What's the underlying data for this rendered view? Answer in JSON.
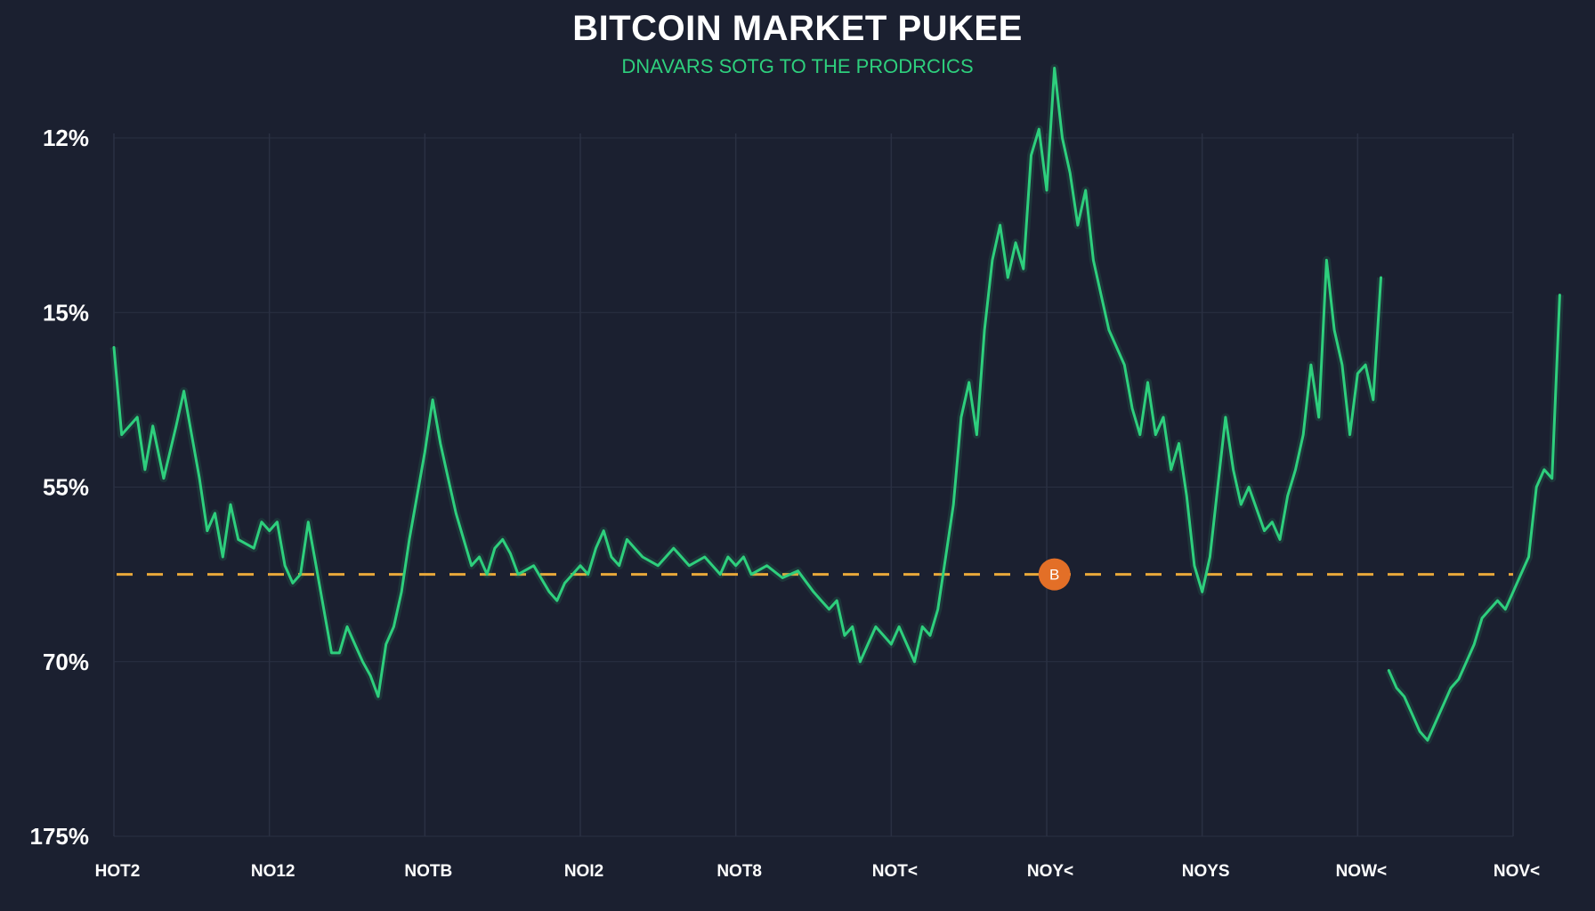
{
  "colors": {
    "background": "#1b2030",
    "series": "#2ecf7d",
    "reference": "#e9a83a",
    "marker": "#e36f27",
    "grid": "#2a3042"
  },
  "chart_data": {
    "type": "line",
    "title": "BITCOIN MARKET PUKEE",
    "subtitle": "DNAVARS SOTG TO THE PRODRCICS",
    "y_tick_labels": [
      "175%",
      "70%",
      "55%",
      "15%",
      "12%"
    ],
    "x_tick_labels": [
      "HOT2",
      "NO12",
      "NOTB",
      "NOI2",
      "NOT8",
      "NOT<",
      "NOY<",
      "NOYS",
      "NOW<",
      "NOV<"
    ],
    "y_scale": "tick index (ticks evenly spaced, bottom to top)",
    "grid": true,
    "reference_line": {
      "value": 1.5,
      "style": "dashed"
    },
    "marker": {
      "label": "B",
      "x": 6.05,
      "y": 1.5,
      "icon": "bitcoin-icon"
    },
    "series": [
      {
        "segments": [
          [
            [
              0.0,
              2.8
            ],
            [
              0.05,
              2.3
            ],
            [
              0.1,
              2.35
            ],
            [
              0.15,
              2.4
            ],
            [
              0.2,
              2.1
            ],
            [
              0.25,
              2.35
            ],
            [
              0.32,
              2.05
            ],
            [
              0.4,
              2.35
            ],
            [
              0.45,
              2.55
            ],
            [
              0.5,
              2.3
            ],
            [
              0.55,
              2.05
            ],
            [
              0.6,
              1.75
            ],
            [
              0.65,
              1.85
            ],
            [
              0.7,
              1.6
            ],
            [
              0.75,
              1.9
            ],
            [
              0.8,
              1.7
            ],
            [
              0.9,
              1.65
            ],
            [
              0.95,
              1.8
            ],
            [
              1.0,
              1.75
            ],
            [
              1.05,
              1.8
            ],
            [
              1.1,
              1.55
            ],
            [
              1.15,
              1.45
            ],
            [
              1.2,
              1.5
            ],
            [
              1.25,
              1.8
            ],
            [
              1.3,
              1.55
            ],
            [
              1.35,
              1.3
            ],
            [
              1.4,
              1.05
            ],
            [
              1.45,
              1.05
            ],
            [
              1.5,
              1.2
            ],
            [
              1.55,
              1.1
            ],
            [
              1.6,
              1.0
            ],
            [
              1.65,
              0.92
            ],
            [
              1.7,
              0.8
            ],
            [
              1.75,
              1.1
            ],
            [
              1.8,
              1.2
            ],
            [
              1.85,
              1.4
            ],
            [
              1.9,
              1.7
            ],
            [
              1.95,
              1.95
            ],
            [
              2.0,
              2.2
            ],
            [
              2.05,
              2.5
            ],
            [
              2.1,
              2.25
            ],
            [
              2.15,
              2.05
            ],
            [
              2.2,
              1.85
            ],
            [
              2.25,
              1.7
            ],
            [
              2.3,
              1.55
            ],
            [
              2.35,
              1.6
            ],
            [
              2.4,
              1.5
            ],
            [
              2.45,
              1.65
            ],
            [
              2.5,
              1.7
            ],
            [
              2.55,
              1.62
            ],
            [
              2.6,
              1.5
            ],
            [
              2.7,
              1.55
            ],
            [
              2.8,
              1.4
            ],
            [
              2.85,
              1.35
            ],
            [
              2.9,
              1.45
            ],
            [
              3.0,
              1.55
            ],
            [
              3.05,
              1.5
            ],
            [
              3.1,
              1.65
            ],
            [
              3.15,
              1.75
            ],
            [
              3.2,
              1.6
            ],
            [
              3.25,
              1.55
            ],
            [
              3.3,
              1.7
            ],
            [
              3.35,
              1.65
            ],
            [
              3.4,
              1.6
            ],
            [
              3.5,
              1.55
            ],
            [
              3.55,
              1.6
            ],
            [
              3.6,
              1.65
            ],
            [
              3.7,
              1.55
            ],
            [
              3.8,
              1.6
            ],
            [
              3.9,
              1.5
            ],
            [
              3.95,
              1.6
            ],
            [
              4.0,
              1.55
            ],
            [
              4.05,
              1.6
            ],
            [
              4.1,
              1.5
            ],
            [
              4.2,
              1.55
            ],
            [
              4.3,
              1.48
            ],
            [
              4.4,
              1.52
            ],
            [
              4.5,
              1.4
            ],
            [
              4.55,
              1.35
            ],
            [
              4.6,
              1.3
            ],
            [
              4.65,
              1.35
            ],
            [
              4.7,
              1.15
            ],
            [
              4.75,
              1.2
            ],
            [
              4.8,
              1.0
            ],
            [
              4.85,
              1.1
            ],
            [
              4.9,
              1.2
            ],
            [
              4.95,
              1.15
            ],
            [
              5.0,
              1.1
            ],
            [
              5.05,
              1.2
            ],
            [
              5.1,
              1.1
            ],
            [
              5.15,
              1.0
            ],
            [
              5.2,
              1.2
            ],
            [
              5.25,
              1.15
            ],
            [
              5.3,
              1.3
            ],
            [
              5.35,
              1.6
            ],
            [
              5.4,
              1.9
            ],
            [
              5.45,
              2.4
            ],
            [
              5.5,
              2.6
            ],
            [
              5.55,
              2.3
            ],
            [
              5.6,
              2.9
            ],
            [
              5.65,
              3.3
            ],
            [
              5.7,
              3.5
            ],
            [
              5.75,
              3.2
            ],
            [
              5.8,
              3.4
            ],
            [
              5.85,
              3.25
            ],
            [
              5.9,
              3.9
            ],
            [
              5.95,
              4.05
            ],
            [
              6.0,
              3.7
            ],
            [
              6.05,
              4.4
            ],
            [
              6.1,
              4.0
            ],
            [
              6.15,
              3.8
            ],
            [
              6.2,
              3.5
            ],
            [
              6.25,
              3.7
            ],
            [
              6.3,
              3.3
            ],
            [
              6.35,
              3.1
            ],
            [
              6.4,
              2.9
            ],
            [
              6.45,
              2.8
            ],
            [
              6.5,
              2.7
            ],
            [
              6.55,
              2.45
            ],
            [
              6.6,
              2.3
            ],
            [
              6.65,
              2.6
            ],
            [
              6.7,
              2.3
            ],
            [
              6.75,
              2.4
            ],
            [
              6.8,
              2.1
            ],
            [
              6.85,
              2.25
            ],
            [
              6.9,
              1.95
            ],
            [
              6.95,
              1.55
            ],
            [
              7.0,
              1.4
            ],
            [
              7.05,
              1.6
            ],
            [
              7.1,
              2.0
            ],
            [
              7.15,
              2.4
            ],
            [
              7.2,
              2.1
            ],
            [
              7.25,
              1.9
            ],
            [
              7.3,
              2.0
            ],
            [
              7.4,
              1.75
            ],
            [
              7.45,
              1.8
            ],
            [
              7.5,
              1.7
            ],
            [
              7.55,
              1.95
            ],
            [
              7.6,
              2.1
            ],
            [
              7.65,
              2.3
            ],
            [
              7.7,
              2.7
            ],
            [
              7.75,
              2.4
            ],
            [
              7.8,
              3.3
            ],
            [
              7.85,
              2.9
            ],
            [
              7.9,
              2.7
            ],
            [
              7.95,
              2.3
            ],
            [
              8.0,
              2.65
            ],
            [
              8.05,
              2.7
            ],
            [
              8.1,
              2.5
            ],
            [
              8.15,
              3.2
            ]
          ],
          [
            [
              8.2,
              0.95
            ],
            [
              8.25,
              0.85
            ],
            [
              8.3,
              0.8
            ],
            [
              8.35,
              0.7
            ],
            [
              8.4,
              0.6
            ],
            [
              8.45,
              0.55
            ],
            [
              8.5,
              0.65
            ],
            [
              8.55,
              0.75
            ],
            [
              8.6,
              0.85
            ],
            [
              8.65,
              0.9
            ],
            [
              8.7,
              1.0
            ],
            [
              8.75,
              1.1
            ],
            [
              8.8,
              1.25
            ],
            [
              8.85,
              1.3
            ],
            [
              8.9,
              1.35
            ],
            [
              8.95,
              1.3
            ],
            [
              9.0,
              1.4
            ],
            [
              9.05,
              1.5
            ],
            [
              9.1,
              1.6
            ],
            [
              9.15,
              2.0
            ],
            [
              9.2,
              2.1
            ],
            [
              9.25,
              2.05
            ],
            [
              9.3,
              3.1
            ]
          ]
        ]
      }
    ]
  }
}
